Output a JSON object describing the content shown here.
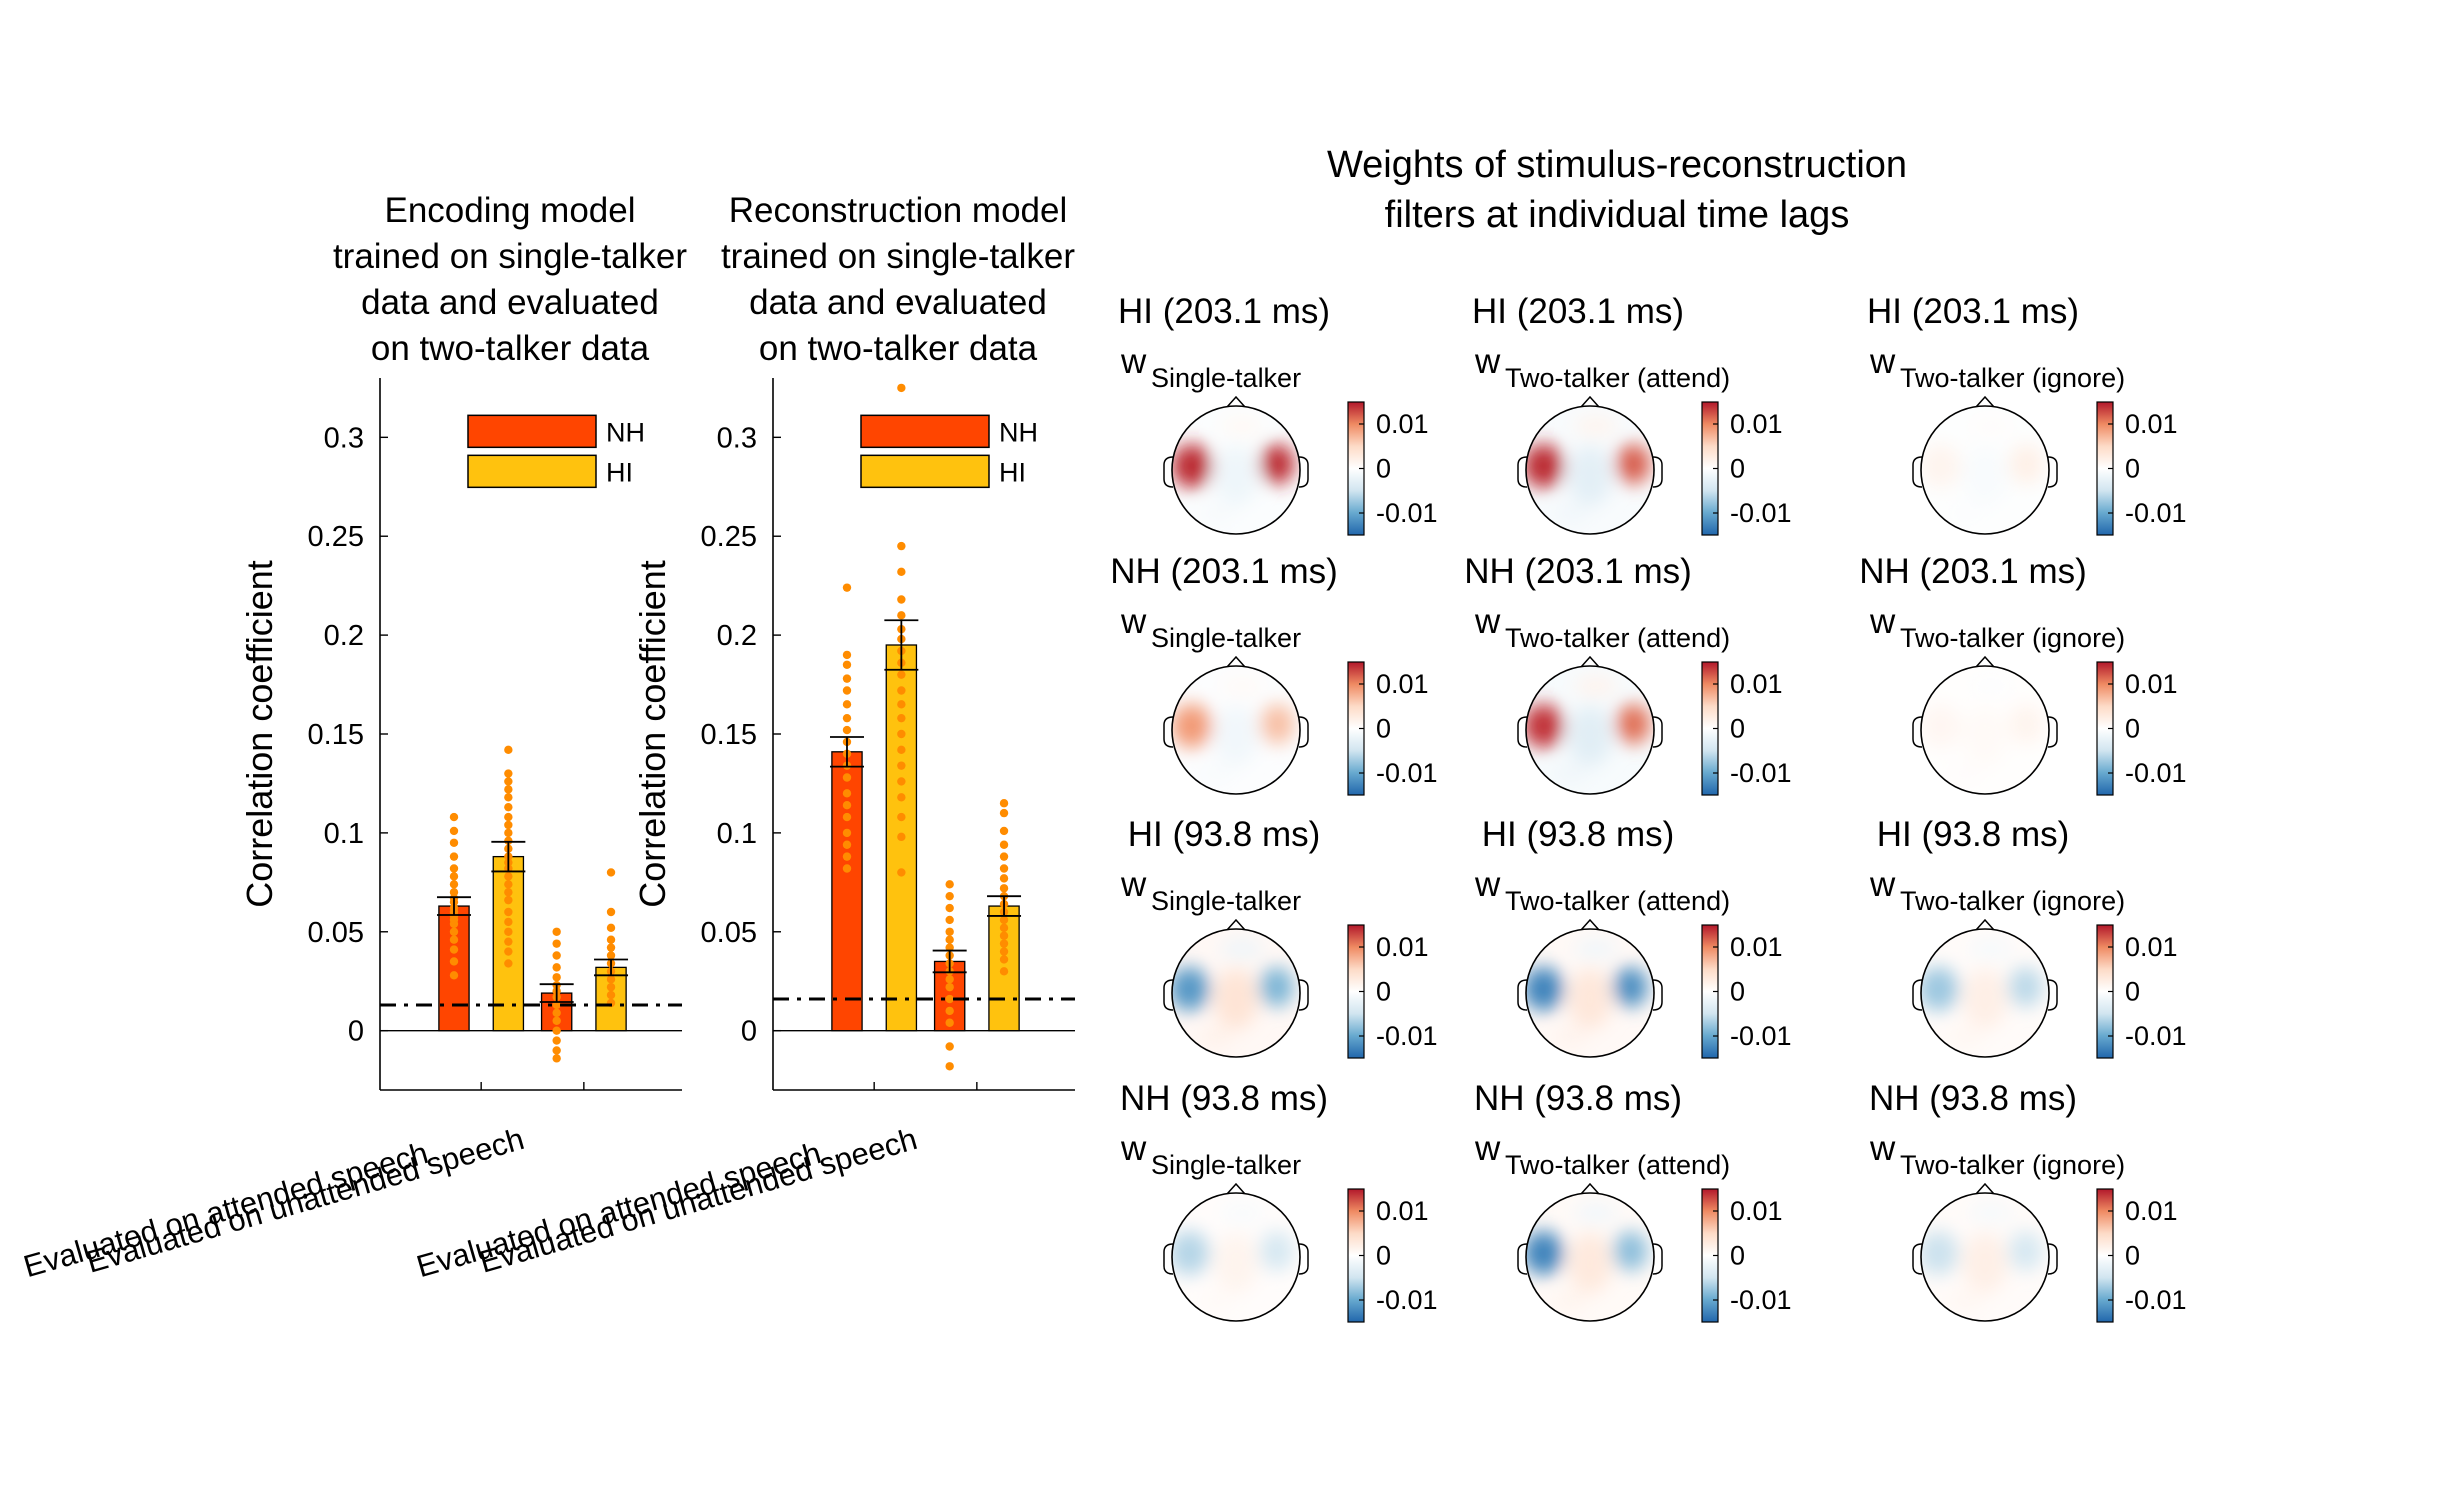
{
  "chart_data": [
    {
      "type": "bar",
      "title": [
        "Encoding model",
        "trained on single-talker",
        "data and evaluated",
        "on two-talker data"
      ],
      "ylabel": "Correlation coefficient",
      "ylim": [
        -0.03,
        0.33
      ],
      "yticks": [
        0,
        0.05,
        0.1,
        0.15,
        0.2,
        0.25,
        0.3
      ],
      "ytick_labels": [
        "0",
        "0.05",
        "0.1",
        "0.15",
        "0.2",
        "0.25",
        "0.3"
      ],
      "categories": [
        "Evaluated on attended speech",
        "Evaluated on unattended speech"
      ],
      "series": [
        {
          "name": "NH",
          "color": "#ff4500",
          "values": [
            0.063,
            0.019
          ],
          "err": [
            0.0045,
            0.0045
          ]
        },
        {
          "name": "HI",
          "color": "#ffc20e",
          "values": [
            0.088,
            0.032
          ],
          "err": [
            0.0075,
            0.004
          ]
        }
      ],
      "points": [
        [
          [
            0.108,
            0.101,
            0.095,
            0.088,
            0.082,
            0.078,
            0.074,
            0.07,
            0.067,
            0.065,
            0.062,
            0.06,
            0.058,
            0.056,
            0.054,
            0.05,
            0.046,
            0.041,
            0.035,
            0.028
          ],
          [
            0.142,
            0.13,
            0.126,
            0.122,
            0.118,
            0.113,
            0.108,
            0.104,
            0.1,
            0.096,
            0.092,
            0.088,
            0.085,
            0.082,
            0.078,
            0.074,
            0.07,
            0.066,
            0.06,
            0.055,
            0.05,
            0.045,
            0.04,
            0.034
          ]
        ],
        [
          [
            0.05,
            0.044,
            0.038,
            0.032,
            0.027,
            0.023,
            0.02,
            0.017,
            0.013,
            0.009,
            0.005,
            0.0,
            -0.005,
            -0.01,
            -0.014
          ],
          [
            0.08,
            0.06,
            0.052,
            0.046,
            0.042,
            0.038,
            0.034,
            0.03,
            0.026,
            0.022,
            0.018,
            0.014
          ]
        ]
      ],
      "chance_level": 0.013,
      "legend_position": "top-right"
    },
    {
      "type": "bar",
      "title": [
        "Reconstruction model",
        "trained on single-talker",
        "data and evaluated",
        "on two-talker data"
      ],
      "ylabel": "Correlation coefficient",
      "ylim": [
        -0.03,
        0.33
      ],
      "yticks": [
        0,
        0.05,
        0.1,
        0.15,
        0.2,
        0.25,
        0.3
      ],
      "ytick_labels": [
        "0",
        "0.05",
        "0.1",
        "0.15",
        "0.2",
        "0.25",
        "0.3"
      ],
      "categories": [
        "Evaluated on attended speech",
        "Evaluated on unattended speech"
      ],
      "series": [
        {
          "name": "NH",
          "color": "#ff4500",
          "values": [
            0.141,
            0.035
          ],
          "err": [
            0.0075,
            0.0055
          ]
        },
        {
          "name": "HI",
          "color": "#ffc20e",
          "values": [
            0.195,
            0.063
          ],
          "err": [
            0.0125,
            0.005
          ]
        }
      ],
      "points": [
        [
          [
            0.224,
            0.19,
            0.185,
            0.178,
            0.172,
            0.165,
            0.158,
            0.152,
            0.146,
            0.14,
            0.134,
            0.128,
            0.12,
            0.114,
            0.108,
            0.1,
            0.094,
            0.088,
            0.082
          ],
          [
            0.325,
            0.245,
            0.232,
            0.218,
            0.21,
            0.203,
            0.198,
            0.192,
            0.186,
            0.18,
            0.172,
            0.165,
            0.158,
            0.15,
            0.142,
            0.134,
            0.126,
            0.118,
            0.108,
            0.098,
            0.08
          ]
        ],
        [
          [
            0.074,
            0.068,
            0.062,
            0.056,
            0.05,
            0.046,
            0.042,
            0.038,
            0.034,
            0.03,
            0.026,
            0.022,
            0.016,
            0.01,
            0.004,
            -0.008,
            -0.018
          ],
          [
            0.115,
            0.11,
            0.101,
            0.094,
            0.088,
            0.082,
            0.077,
            0.072,
            0.068,
            0.064,
            0.06,
            0.056,
            0.052,
            0.048,
            0.044,
            0.04,
            0.036,
            0.03
          ]
        ]
      ],
      "chance_level": 0.016,
      "legend_position": "top-right"
    },
    {
      "type": "heatmap",
      "title": [
        "Weights of stimulus-reconstruction",
        "filters at individual time lags"
      ],
      "colormap": [
        "#2166ac",
        "#67a9cf",
        "#d1e5f0",
        "#ffffff",
        "#fddbc7",
        "#ef8a62",
        "#b2182b"
      ],
      "colorbar_ticks": [
        "0.01",
        "0",
        "-0.01"
      ],
      "w_symbol": "w",
      "panels": [
        {
          "title": "HI (203.1 ms)",
          "subscript": "Single-talker",
          "left": 0.95,
          "right": 0.95,
          "center": -0.12,
          "left_x": 0.34,
          "right_x": 0.75
        },
        {
          "title": "HI (203.1 ms)",
          "subscript": "Two-talker (attend)",
          "left": 0.95,
          "right": 0.8,
          "center": -0.2,
          "left_x": 0.3,
          "right_x": 0.77
        },
        {
          "title": "HI (203.1 ms)",
          "subscript": "Two-talker (ignore)",
          "left": 0.1,
          "right": 0.14,
          "center": -0.05,
          "left_x": 0.34,
          "right_x": 0.75
        },
        {
          "title": "NH (203.1 ms)",
          "subscript": "Single-talker",
          "left": 0.6,
          "right": 0.45,
          "center": -0.1,
          "left_x": 0.34,
          "right_x": 0.75
        },
        {
          "title": "NH (203.1 ms)",
          "subscript": "Two-talker (attend)",
          "left": 0.92,
          "right": 0.75,
          "center": -0.22,
          "left_x": 0.3,
          "right_x": 0.77
        },
        {
          "title": "NH (203.1 ms)",
          "subscript": "Two-talker (ignore)",
          "left": 0.08,
          "right": 0.1,
          "center": 0.05,
          "left_x": 0.34,
          "right_x": 0.75
        },
        {
          "title": "HI (93.8 ms)",
          "subscript": "Single-talker",
          "left": -0.75,
          "right": -0.6,
          "center": 0.25,
          "left_x": 0.3,
          "right_x": 0.74
        },
        {
          "title": "HI (93.8 ms)",
          "subscript": "Two-talker (attend)",
          "left": -0.85,
          "right": -0.8,
          "center": 0.22,
          "left_x": 0.3,
          "right_x": 0.74
        },
        {
          "title": "HI (93.8 ms)",
          "subscript": "Two-talker (ignore)",
          "left": -0.5,
          "right": -0.4,
          "center": 0.15,
          "left_x": 0.3,
          "right_x": 0.74
        },
        {
          "title": "NH (93.8 ms)",
          "subscript": "Single-talker",
          "left": -0.42,
          "right": -0.3,
          "center": 0.1,
          "left_x": 0.3,
          "right_x": 0.74
        },
        {
          "title": "NH (93.8 ms)",
          "subscript": "Two-talker (attend)",
          "left": -0.85,
          "right": -0.55,
          "center": 0.2,
          "left_x": 0.3,
          "right_x": 0.74
        },
        {
          "title": "NH (93.8 ms)",
          "subscript": "Two-talker (ignore)",
          "left": -0.35,
          "right": -0.3,
          "center": 0.15,
          "left_x": 0.3,
          "right_x": 0.74
        }
      ]
    }
  ]
}
